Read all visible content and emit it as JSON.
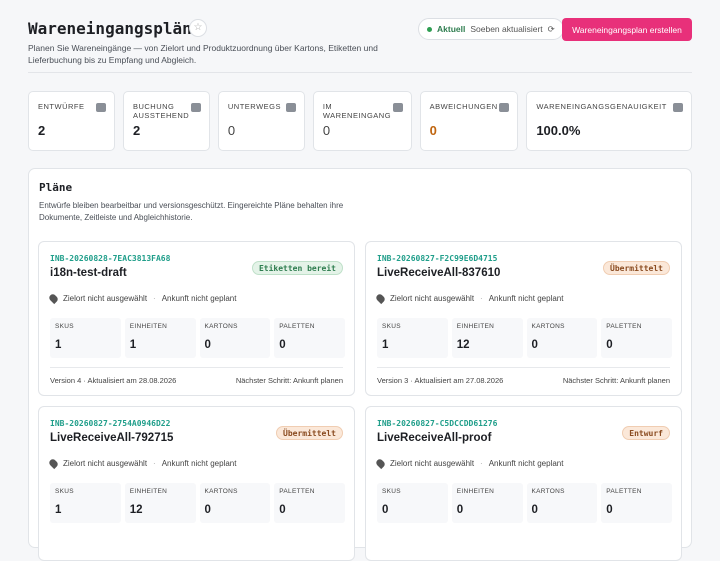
{
  "header": {
    "title": "Wareneingangspläne",
    "description": "Planen Sie Wareneingänge — von Zielort und Produktzuordnung über Kartons, Etiketten und Lieferbuchung bis zu Empfang und Abgleich.",
    "status": "Aktuell",
    "status_detail": "Soeben aktualisiert",
    "create_button": "Wareneingangsplan erstellen"
  },
  "stats": [
    {
      "label": "ENTWÜRFE",
      "value": "2"
    },
    {
      "label": "BUCHUNG AUSSTEHEND",
      "value": "2"
    },
    {
      "label": "UNTERWEGS",
      "value": "0"
    },
    {
      "label": "IM WARENEINGANG",
      "value": "0"
    },
    {
      "label": "ABWEICHUNGEN",
      "value": "0"
    },
    {
      "label": "WARENEINGANGSGENAUIGKEIT",
      "value": "100.0%"
    }
  ],
  "section": {
    "title": "Pläne",
    "description": "Entwürfe bleiben bearbeitbar und versionsgeschützt. Eingereichte Pläne behalten ihre Dokumente, Zeitleiste und Abgleichhistorie."
  },
  "plans": [
    {
      "id": "INB-20260828-7EAC3813FA68",
      "name": "i18n-test-draft",
      "status": "Etiketten bereit",
      "destination": "Zielort nicht ausgewählt",
      "arrival": "Ankunft nicht geplant",
      "metrics": [
        {
          "label": "SKUS",
          "value": "1"
        },
        {
          "label": "EINHEITEN",
          "value": "1"
        },
        {
          "label": "KARTONS",
          "value": "0"
        },
        {
          "label": "PALETTEN",
          "value": "0"
        }
      ],
      "version": "Version 4 · Aktualisiert am 28.08.2026",
      "next_step": "Nächster Schritt: Ankunft planen"
    },
    {
      "id": "INB-20260827-F2C99E6D4715",
      "name": "LiveReceiveAll-837610",
      "status": "Übermittelt",
      "destination": "Zielort nicht ausgewählt",
      "arrival": "Ankunft nicht geplant",
      "metrics": [
        {
          "label": "SKUS",
          "value": "1"
        },
        {
          "label": "EINHEITEN",
          "value": "12"
        },
        {
          "label": "KARTONS",
          "value": "0"
        },
        {
          "label": "PALETTEN",
          "value": "0"
        }
      ],
      "version": "Version 3 · Aktualisiert am 27.08.2026",
      "next_step": "Nächster Schritt: Ankunft planen"
    },
    {
      "id": "INB-20260827-2754A0946D22",
      "name": "LiveReceiveAll-792715",
      "status": "Übermittelt",
      "destination": "Zielort nicht ausgewählt",
      "arrival": "Ankunft nicht geplant",
      "metrics": [
        {
          "label": "SKUS",
          "value": "1"
        },
        {
          "label": "EINHEITEN",
          "value": "12"
        },
        {
          "label": "KARTONS",
          "value": "0"
        },
        {
          "label": "PALETTEN",
          "value": "0"
        }
      ]
    },
    {
      "id": "INB-20260827-C5DCCDD61276",
      "name": "LiveReceiveAll-proof",
      "status": "Entwurf",
      "destination": "Zielort nicht ausgewählt",
      "arrival": "Ankunft nicht geplant",
      "metrics": [
        {
          "label": "SKUS",
          "value": "0"
        },
        {
          "label": "EINHEITEN",
          "value": "0"
        },
        {
          "label": "KARTONS",
          "value": "0"
        },
        {
          "label": "PALETTEN",
          "value": "0"
        }
      ]
    }
  ]
}
